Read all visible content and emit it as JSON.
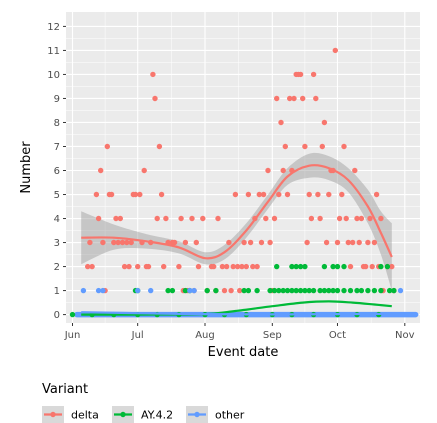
{
  "chart_data": {
    "type": "scatter",
    "xlabel": "Event date",
    "ylabel": "Number",
    "x_ticks": [
      "Jun",
      "Jul",
      "Aug",
      "Sep",
      "Oct",
      "Nov"
    ],
    "x_tick_dates": [
      "2021-06-01",
      "2021-07-01",
      "2021-08-01",
      "2021-09-01",
      "2021-10-01",
      "2021-11-01"
    ],
    "xlim": [
      "2021-05-29",
      "2021-11-08"
    ],
    "y_ticks": [
      0,
      1,
      2,
      3,
      4,
      5,
      6,
      7,
      8,
      9,
      10,
      11,
      12
    ],
    "ylim": [
      -0.35,
      12.6
    ],
    "grid": true,
    "background": "#EBEBEB",
    "legend": {
      "title": "Variant",
      "position": "bottom"
    },
    "series": [
      {
        "name": "delta",
        "color": "#F8766D",
        "points": [
          [
            "2021-06-08",
            2
          ],
          [
            "2021-06-09",
            3
          ],
          [
            "2021-06-10",
            2
          ],
          [
            "2021-06-12",
            5
          ],
          [
            "2021-06-13",
            4
          ],
          [
            "2021-06-14",
            6
          ],
          [
            "2021-06-15",
            3
          ],
          [
            "2021-06-16",
            1
          ],
          [
            "2021-06-17",
            7
          ],
          [
            "2021-06-18",
            5
          ],
          [
            "2021-06-19",
            5
          ],
          [
            "2021-06-20",
            3
          ],
          [
            "2021-06-21",
            4
          ],
          [
            "2021-06-22",
            3
          ],
          [
            "2021-06-23",
            4
          ],
          [
            "2021-06-24",
            3
          ],
          [
            "2021-06-25",
            2
          ],
          [
            "2021-06-26",
            3
          ],
          [
            "2021-06-27",
            2
          ],
          [
            "2021-06-28",
            3
          ],
          [
            "2021-06-29",
            5
          ],
          [
            "2021-06-30",
            5
          ],
          [
            "2021-07-01",
            2
          ],
          [
            "2021-07-02",
            5
          ],
          [
            "2021-07-03",
            3
          ],
          [
            "2021-07-04",
            6
          ],
          [
            "2021-07-05",
            2
          ],
          [
            "2021-07-06",
            2
          ],
          [
            "2021-07-07",
            3
          ],
          [
            "2021-07-08",
            10
          ],
          [
            "2021-07-09",
            9
          ],
          [
            "2021-07-10",
            4
          ],
          [
            "2021-07-11",
            7
          ],
          [
            "2021-07-12",
            5
          ],
          [
            "2021-07-13",
            2
          ],
          [
            "2021-07-14",
            4
          ],
          [
            "2021-07-15",
            3
          ],
          [
            "2021-07-17",
            3
          ],
          [
            "2021-07-18",
            3
          ],
          [
            "2021-07-20",
            2
          ],
          [
            "2021-07-21",
            4
          ],
          [
            "2021-07-22",
            1
          ],
          [
            "2021-07-23",
            3
          ],
          [
            "2021-07-24",
            1
          ],
          [
            "2021-07-26",
            4
          ],
          [
            "2021-07-27",
            1
          ],
          [
            "2021-07-28",
            3
          ],
          [
            "2021-07-29",
            2
          ],
          [
            "2021-07-31",
            4
          ],
          [
            "2021-08-02",
            1
          ],
          [
            "2021-08-04",
            2
          ],
          [
            "2021-08-05",
            2
          ],
          [
            "2021-08-06",
            1
          ],
          [
            "2021-08-07",
            4
          ],
          [
            "2021-08-09",
            2
          ],
          [
            "2021-08-10",
            1
          ],
          [
            "2021-08-11",
            2
          ],
          [
            "2021-08-12",
            3
          ],
          [
            "2021-08-13",
            1
          ],
          [
            "2021-08-14",
            2
          ],
          [
            "2021-08-15",
            5
          ],
          [
            "2021-08-16",
            2
          ],
          [
            "2021-08-17",
            1
          ],
          [
            "2021-08-18",
            2
          ],
          [
            "2021-08-19",
            3
          ],
          [
            "2021-08-20",
            2
          ],
          [
            "2021-08-21",
            5
          ],
          [
            "2021-08-22",
            3
          ],
          [
            "2021-08-23",
            2
          ],
          [
            "2021-08-24",
            4
          ],
          [
            "2021-08-25",
            2
          ],
          [
            "2021-08-26",
            5
          ],
          [
            "2021-08-27",
            3
          ],
          [
            "2021-08-28",
            5
          ],
          [
            "2021-08-29",
            4
          ],
          [
            "2021-08-30",
            6
          ],
          [
            "2021-08-31",
            3
          ],
          [
            "2021-09-01",
            1
          ],
          [
            "2021-09-02",
            4
          ],
          [
            "2021-09-03",
            9
          ],
          [
            "2021-09-04",
            5
          ],
          [
            "2021-09-05",
            8
          ],
          [
            "2021-09-06",
            6
          ],
          [
            "2021-09-07",
            7
          ],
          [
            "2021-09-08",
            5
          ],
          [
            "2021-09-09",
            9
          ],
          [
            "2021-09-10",
            6
          ],
          [
            "2021-09-11",
            9
          ],
          [
            "2021-09-12",
            10
          ],
          [
            "2021-09-13",
            10
          ],
          [
            "2021-09-14",
            10
          ],
          [
            "2021-09-15",
            9
          ],
          [
            "2021-09-16",
            7
          ],
          [
            "2021-09-17",
            3
          ],
          [
            "2021-09-18",
            5
          ],
          [
            "2021-09-19",
            4
          ],
          [
            "2021-09-20",
            10
          ],
          [
            "2021-09-21",
            9
          ],
          [
            "2021-09-22",
            5
          ],
          [
            "2021-09-23",
            4
          ],
          [
            "2021-09-24",
            7
          ],
          [
            "2021-09-25",
            8
          ],
          [
            "2021-09-26",
            3
          ],
          [
            "2021-09-27",
            5
          ],
          [
            "2021-09-28",
            6
          ],
          [
            "2021-09-29",
            6
          ],
          [
            "2021-09-30",
            11
          ],
          [
            "2021-10-01",
            3
          ],
          [
            "2021-10-02",
            4
          ],
          [
            "2021-10-03",
            5
          ],
          [
            "2021-10-04",
            7
          ],
          [
            "2021-10-05",
            4
          ],
          [
            "2021-10-06",
            3
          ],
          [
            "2021-10-07",
            2
          ],
          [
            "2021-10-08",
            3
          ],
          [
            "2021-10-09",
            6
          ],
          [
            "2021-10-10",
            4
          ],
          [
            "2021-10-11",
            3
          ],
          [
            "2021-10-12",
            4
          ],
          [
            "2021-10-13",
            2
          ],
          [
            "2021-10-14",
            2
          ],
          [
            "2021-10-15",
            3
          ],
          [
            "2021-10-16",
            4
          ],
          [
            "2021-10-17",
            2
          ],
          [
            "2021-10-18",
            3
          ],
          [
            "2021-10-19",
            5
          ],
          [
            "2021-10-20",
            2
          ],
          [
            "2021-10-21",
            4
          ],
          [
            "2021-10-22",
            1
          ],
          [
            "2021-10-24",
            2
          ],
          [
            "2021-10-26",
            2
          ],
          [
            "2021-10-27",
            1
          ]
        ],
        "smooth": [
          [
            "2021-06-05",
            3.2
          ],
          [
            "2021-06-20",
            3.2
          ],
          [
            "2021-07-05",
            3.05
          ],
          [
            "2021-07-20",
            2.8
          ],
          [
            "2021-08-01",
            2.35
          ],
          [
            "2021-08-10",
            2.6
          ],
          [
            "2021-08-20",
            3.5
          ],
          [
            "2021-08-30",
            4.7
          ],
          [
            "2021-09-08",
            5.75
          ],
          [
            "2021-09-18",
            6.2
          ],
          [
            "2021-09-27",
            6.1
          ],
          [
            "2021-10-06",
            5.6
          ],
          [
            "2021-10-15",
            4.5
          ],
          [
            "2021-10-21",
            3.4
          ],
          [
            "2021-10-26",
            2.4
          ]
        ],
        "ci_upper": [
          [
            "2021-06-05",
            4.3
          ],
          [
            "2021-06-20",
            3.75
          ],
          [
            "2021-07-05",
            3.35
          ],
          [
            "2021-07-20",
            3.05
          ],
          [
            "2021-08-01",
            2.6
          ],
          [
            "2021-08-10",
            2.9
          ],
          [
            "2021-08-20",
            3.8
          ],
          [
            "2021-08-30",
            5.0
          ],
          [
            "2021-09-08",
            6.1
          ],
          [
            "2021-09-18",
            6.7
          ],
          [
            "2021-09-27",
            6.6
          ],
          [
            "2021-10-06",
            6.1
          ],
          [
            "2021-10-15",
            5.2
          ],
          [
            "2021-10-21",
            4.3
          ],
          [
            "2021-10-26",
            3.8
          ]
        ],
        "ci_lower": [
          [
            "2021-06-05",
            2.1
          ],
          [
            "2021-06-20",
            2.7
          ],
          [
            "2021-07-05",
            2.75
          ],
          [
            "2021-07-20",
            2.55
          ],
          [
            "2021-08-01",
            2.1
          ],
          [
            "2021-08-10",
            2.3
          ],
          [
            "2021-08-20",
            3.2
          ],
          [
            "2021-08-30",
            4.4
          ],
          [
            "2021-09-08",
            5.4
          ],
          [
            "2021-09-18",
            5.7
          ],
          [
            "2021-09-27",
            5.6
          ],
          [
            "2021-10-06",
            5.1
          ],
          [
            "2021-10-15",
            3.8
          ],
          [
            "2021-10-21",
            2.5
          ],
          [
            "2021-10-26",
            1.0
          ]
        ]
      },
      {
        "name": "AY.4.2",
        "color": "#00BA38",
        "points": [
          [
            "2021-06-01",
            0
          ],
          [
            "2021-06-10",
            0
          ],
          [
            "2021-06-20",
            0
          ],
          [
            "2021-07-01",
            0
          ],
          [
            "2021-07-10",
            0
          ],
          [
            "2021-07-20",
            0
          ],
          [
            "2021-08-01",
            0
          ],
          [
            "2021-08-10",
            0
          ],
          [
            "2021-08-20",
            0
          ],
          [
            "2021-09-01",
            0
          ],
          [
            "2021-09-10",
            0
          ],
          [
            "2021-09-20",
            0
          ],
          [
            "2021-10-01",
            0
          ],
          [
            "2021-10-10",
            0
          ],
          [
            "2021-10-20",
            0
          ],
          [
            "2021-06-30",
            1
          ],
          [
            "2021-07-01",
            1
          ],
          [
            "2021-07-15",
            1
          ],
          [
            "2021-07-17",
            1
          ],
          [
            "2021-07-23",
            1
          ],
          [
            "2021-07-25",
            1
          ],
          [
            "2021-08-02",
            1
          ],
          [
            "2021-08-06",
            1
          ],
          [
            "2021-08-19",
            1
          ],
          [
            "2021-08-21",
            1
          ],
          [
            "2021-08-25",
            1
          ],
          [
            "2021-08-31",
            1
          ],
          [
            "2021-09-02",
            1
          ],
          [
            "2021-09-04",
            1
          ],
          [
            "2021-09-06",
            1
          ],
          [
            "2021-09-08",
            1
          ],
          [
            "2021-09-10",
            1
          ],
          [
            "2021-09-12",
            1
          ],
          [
            "2021-09-14",
            1
          ],
          [
            "2021-09-16",
            1
          ],
          [
            "2021-09-18",
            1
          ],
          [
            "2021-09-20",
            1
          ],
          [
            "2021-09-23",
            1
          ],
          [
            "2021-09-25",
            1
          ],
          [
            "2021-09-27",
            1
          ],
          [
            "2021-09-29",
            1
          ],
          [
            "2021-10-01",
            1
          ],
          [
            "2021-10-04",
            1
          ],
          [
            "2021-10-07",
            1
          ],
          [
            "2021-10-10",
            1
          ],
          [
            "2021-10-12",
            1
          ],
          [
            "2021-10-15",
            1
          ],
          [
            "2021-10-18",
            1
          ],
          [
            "2021-10-21",
            1
          ],
          [
            "2021-10-25",
            1
          ],
          [
            "2021-10-27",
            1
          ],
          [
            "2021-09-03",
            2
          ],
          [
            "2021-09-10",
            2
          ],
          [
            "2021-09-12",
            2
          ],
          [
            "2021-09-14",
            2
          ],
          [
            "2021-09-16",
            2
          ],
          [
            "2021-09-25",
            2
          ],
          [
            "2021-09-29",
            2
          ],
          [
            "2021-10-01",
            2
          ],
          [
            "2021-10-04",
            2
          ],
          [
            "2021-10-21",
            2
          ],
          [
            "2021-10-24",
            2
          ]
        ],
        "smooth": [
          [
            "2021-06-05",
            0.0
          ],
          [
            "2021-07-01",
            0.0
          ],
          [
            "2021-08-01",
            0.02
          ],
          [
            "2021-08-15",
            0.15
          ],
          [
            "2021-09-01",
            0.35
          ],
          [
            "2021-09-15",
            0.5
          ],
          [
            "2021-09-27",
            0.55
          ],
          [
            "2021-10-08",
            0.5
          ],
          [
            "2021-10-18",
            0.42
          ],
          [
            "2021-10-26",
            0.35
          ]
        ]
      },
      {
        "name": "other",
        "color": "#619CFF",
        "points": [
          [
            "2021-06-06",
            1
          ],
          [
            "2021-06-13",
            1
          ],
          [
            "2021-06-15",
            1
          ],
          [
            "2021-07-01",
            1
          ],
          [
            "2021-07-07",
            1
          ],
          [
            "2021-07-25",
            1
          ],
          [
            "2021-07-27",
            1
          ],
          [
            "2021-10-30",
            1
          ]
        ],
        "zero_run": [
          "2021-06-03",
          "2021-11-06"
        ],
        "smooth": [
          [
            "2021-06-05",
            0.1
          ],
          [
            "2021-07-01",
            0.06
          ],
          [
            "2021-08-01",
            0.02
          ],
          [
            "2021-09-01",
            0.01
          ],
          [
            "2021-10-01",
            0.02
          ],
          [
            "2021-10-26",
            0.03
          ]
        ]
      }
    ]
  }
}
